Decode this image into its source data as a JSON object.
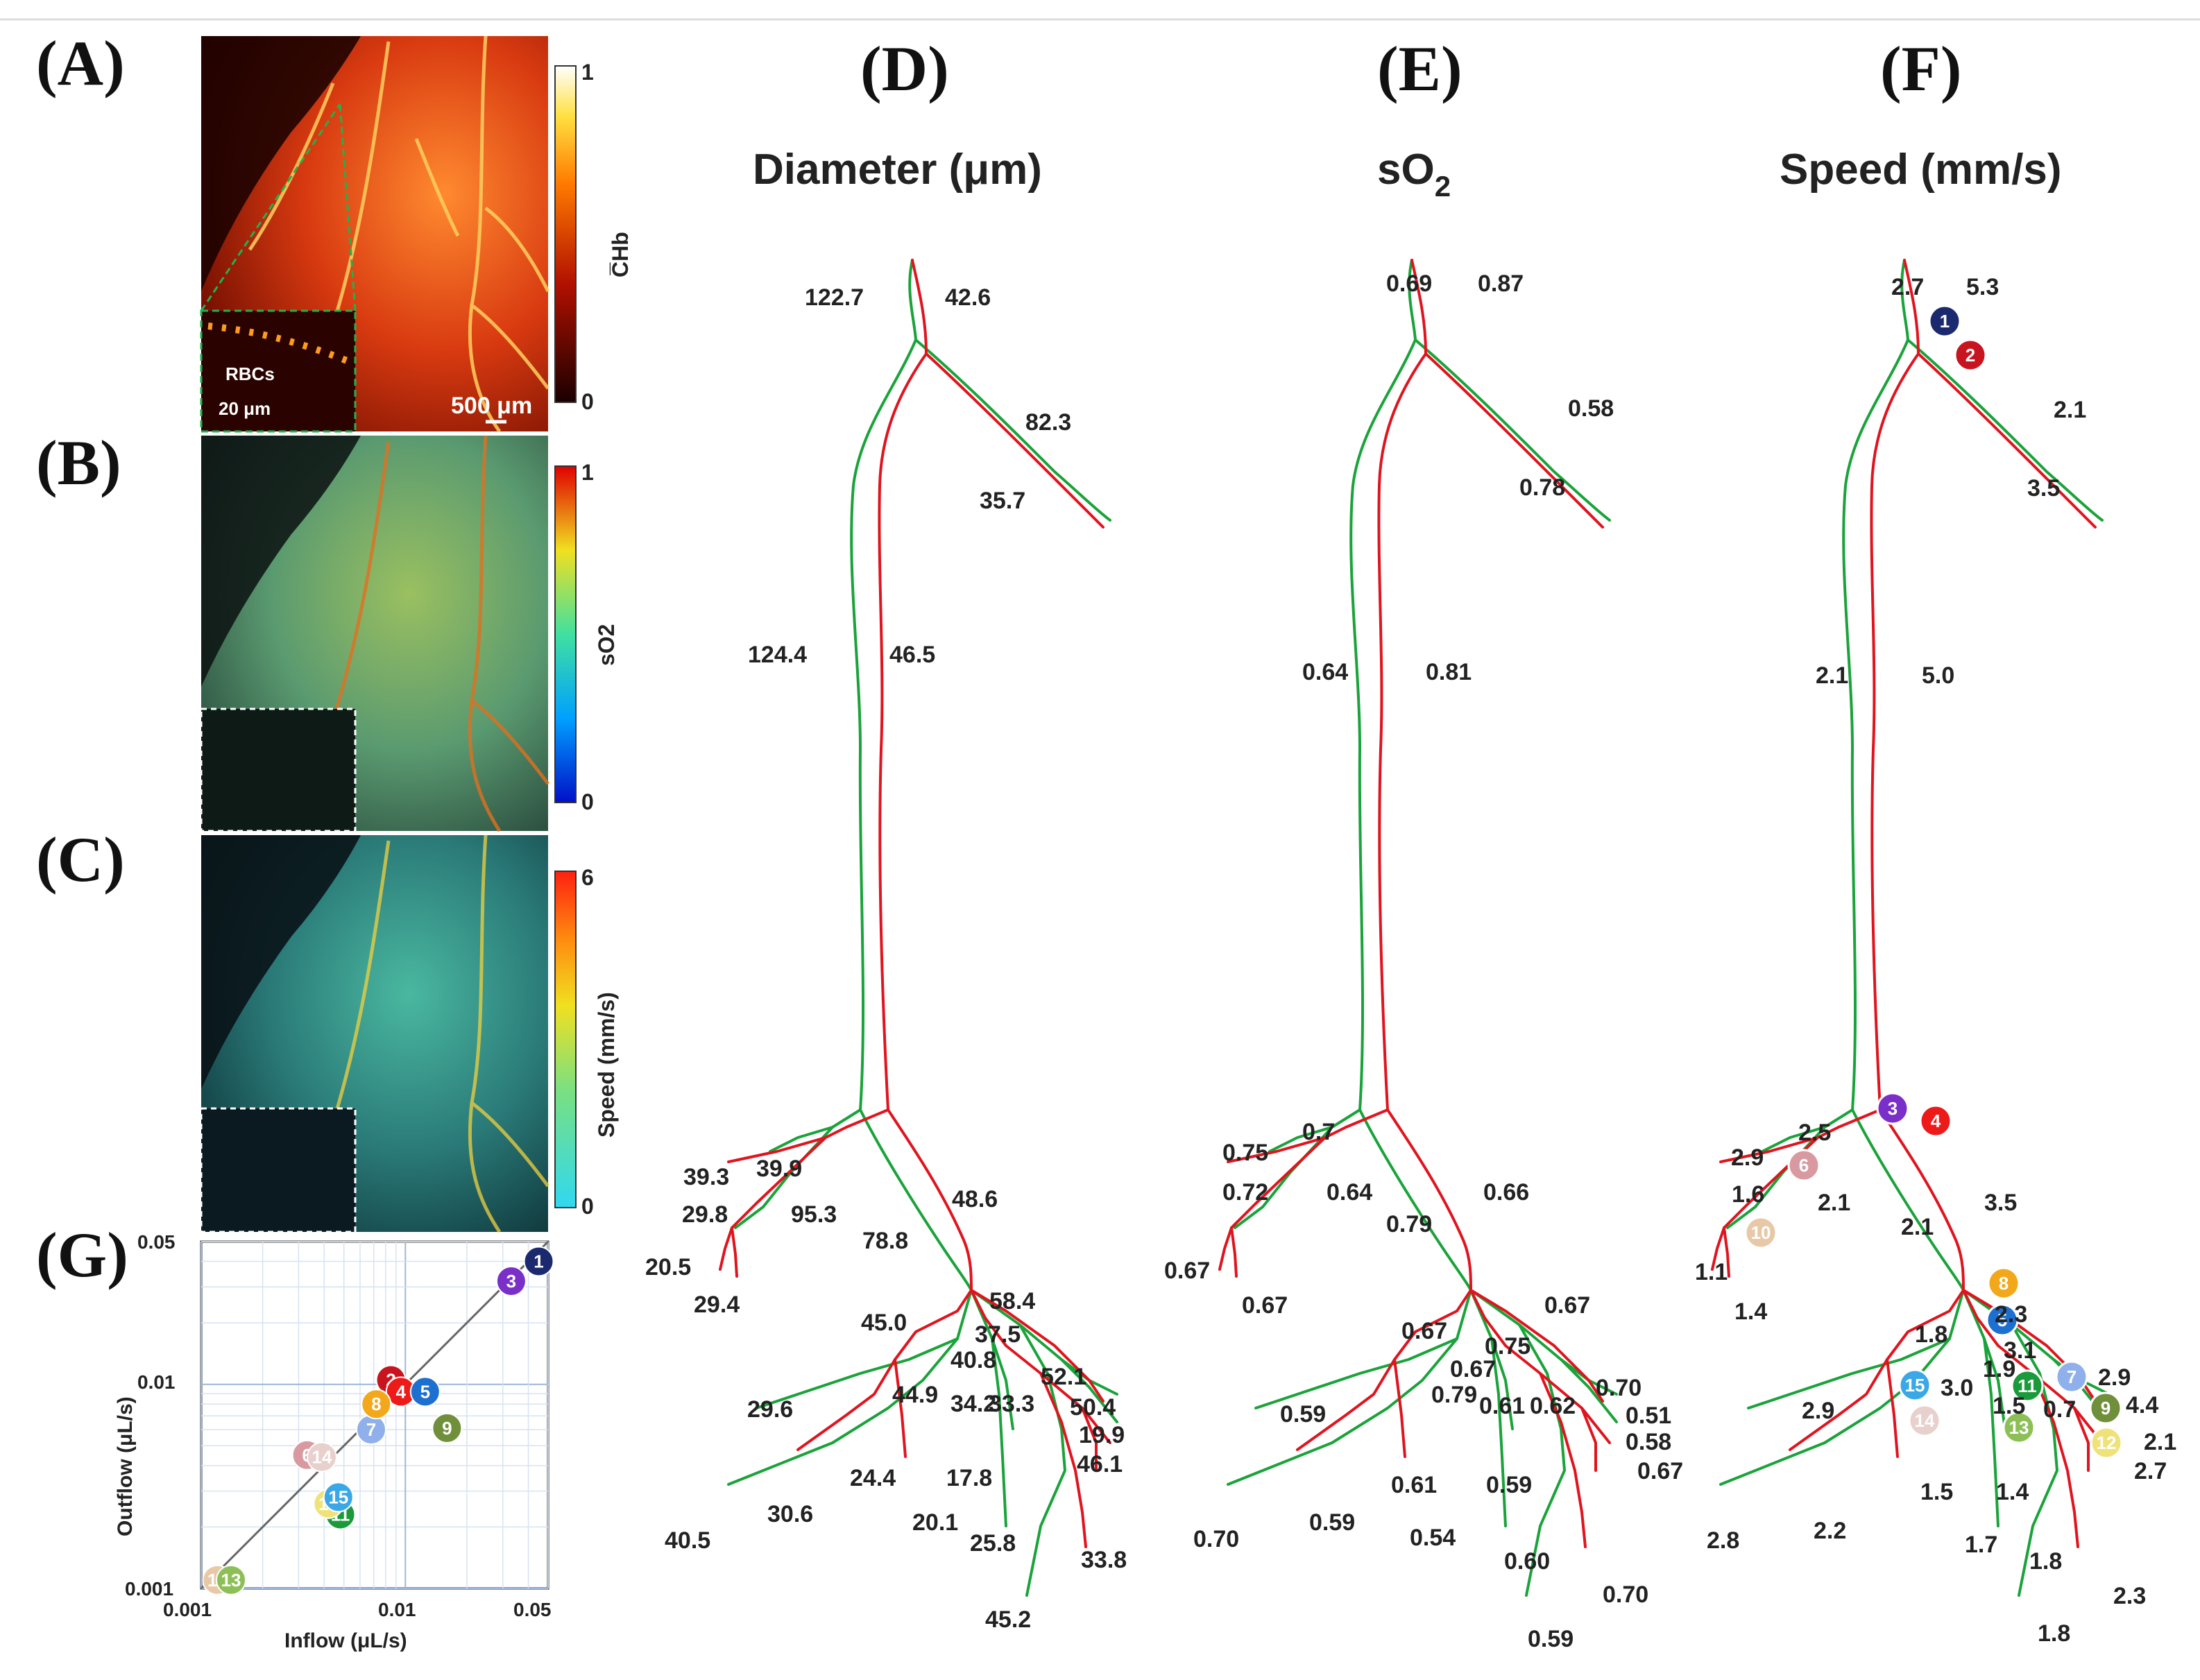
{
  "panels": {
    "A": {
      "label": "(A)",
      "colorbar": {
        "max": "1",
        "min": "0",
        "label": "C̅Hb"
      },
      "inset_label": "RBCs",
      "scale_inset": "20 μm",
      "scale_main": "500 μm"
    },
    "B": {
      "label": "(B)",
      "colorbar": {
        "max": "1",
        "min": "0",
        "label": "sO2"
      }
    },
    "C": {
      "label": "(C)",
      "colorbar": {
        "max": "6",
        "min": "0",
        "label": "Speed (mm/s)"
      }
    },
    "D": {
      "label": "(D)",
      "title": "Diameter (μm)",
      "values": [
        "122.7",
        "42.6",
        "82.3",
        "35.7",
        "124.4",
        "46.5",
        "39.3",
        "39.9",
        "29.8",
        "95.3",
        "48.6",
        "78.8",
        "20.5",
        "29.4",
        "58.4",
        "45.0",
        "37.5",
        "40.8",
        "52.1",
        "34.2",
        "33.3",
        "44.9",
        "50.4",
        "29.6",
        "19.9",
        "46.1",
        "24.4",
        "17.8",
        "30.6",
        "20.1",
        "25.8",
        "40.5",
        "33.8",
        "45.2"
      ]
    },
    "E": {
      "label": "(E)",
      "title_main": "sO",
      "title_sub": "2",
      "values": [
        "0.69",
        "0.87",
        "0.58",
        "0.78",
        "0.64",
        "0.81",
        "0.75",
        "0.7",
        "0.72",
        "0.64",
        "0.66",
        "0.79",
        "0.67",
        "0.67",
        "0.67",
        "0.67",
        "0.75",
        "0.67",
        "0.70",
        "0.59",
        "0.79",
        "0.61",
        "0.62",
        "0.51",
        "0.58",
        "0.67",
        "0.61",
        "0.59",
        "0.54",
        "0.59",
        "0.70",
        "0.60",
        "0.70",
        "0.59"
      ]
    },
    "F": {
      "label": "(F)",
      "title": "Speed (mm/s)",
      "values": [
        "2.7",
        "5.3",
        "2.1",
        "3.5",
        "2.1",
        "5.0",
        "2.5",
        "2.9",
        "1.6",
        "2.1",
        "3.5",
        "2.1",
        "1.1",
        "1.4",
        "2.3",
        "1.8",
        "3.1",
        "1.9",
        "2.9",
        "3.0",
        "4.4",
        "2.9",
        "1.5",
        "0.7",
        "2.1",
        "2.7",
        "1.5",
        "1.4",
        "2.8",
        "2.2",
        "1.7",
        "1.8",
        "2.3",
        "1.8"
      ]
    },
    "G": {
      "label": "(G)",
      "xlabel": "Inflow (μL/s)",
      "ylabel": "Outflow (μL/s)",
      "xticks": [
        "0.001",
        "0.01",
        "0.05"
      ],
      "yticks": [
        "0.001",
        "0.01",
        "0.05"
      ]
    }
  },
  "node_colors": {
    "1": "#1b2a6e",
    "2": "#c8141e",
    "3": "#7a2fc8",
    "4": "#ee1a1a",
    "5": "#1d6fd0",
    "6": "#d89aa0",
    "7": "#8fb0ea",
    "8": "#f2a81a",
    "9": "#6f8f3a",
    "10": "#e7c9a7",
    "11": "#1a9a3a",
    "12": "#f0e27a",
    "13": "#8cc057",
    "14": "#e8d0cc",
    "15": "#3aa8e6"
  },
  "chart_data": {
    "type": "scatter",
    "title": "",
    "xlabel": "Inflow (μL/s)",
    "ylabel": "Outflow (μL/s)",
    "xscale": "log",
    "yscale": "log",
    "xlim": [
      0.001,
      0.05
    ],
    "ylim": [
      0.001,
      0.05
    ],
    "reference_line": "y = x",
    "points": [
      {
        "id": "1",
        "x": 0.045,
        "y": 0.04
      },
      {
        "id": "2",
        "x": 0.0085,
        "y": 0.0105
      },
      {
        "id": "3",
        "x": 0.033,
        "y": 0.032
      },
      {
        "id": "4",
        "x": 0.0095,
        "y": 0.0092
      },
      {
        "id": "5",
        "x": 0.0125,
        "y": 0.0092
      },
      {
        "id": "6",
        "x": 0.0033,
        "y": 0.0045
      },
      {
        "id": "7",
        "x": 0.0068,
        "y": 0.006
      },
      {
        "id": "8",
        "x": 0.0072,
        "y": 0.008
      },
      {
        "id": "9",
        "x": 0.016,
        "y": 0.0061
      },
      {
        "id": "10",
        "x": 0.0012,
        "y": 0.0011
      },
      {
        "id": "11",
        "x": 0.0048,
        "y": 0.0023
      },
      {
        "id": "12",
        "x": 0.0042,
        "y": 0.0026
      },
      {
        "id": "13",
        "x": 0.0014,
        "y": 0.0011
      },
      {
        "id": "14",
        "x": 0.0039,
        "y": 0.0044
      },
      {
        "id": "15",
        "x": 0.0047,
        "y": 0.0028
      }
    ]
  }
}
